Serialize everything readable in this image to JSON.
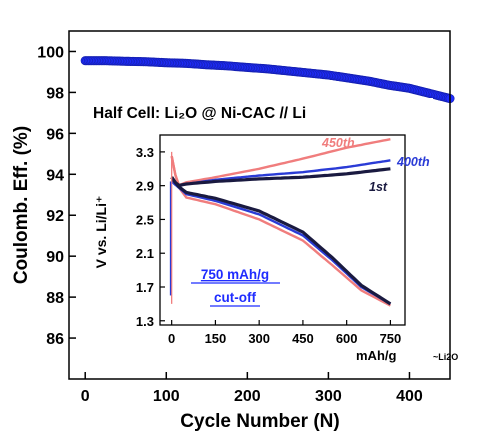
{
  "chart_data": [
    {
      "type": "scatter",
      "xlabel": "Cycle Number (N)",
      "ylabel": "Coulomb. Eff. (%)",
      "xlim": [
        -20,
        450
      ],
      "ylim": [
        84,
        101
      ],
      "x_ticks": [
        0,
        100,
        200,
        300,
        400
      ],
      "y_ticks": [
        86,
        88,
        90,
        92,
        94,
        96,
        98,
        100
      ],
      "grid": false,
      "series": [
        {
          "color": "#1f2cff",
          "x": [
            0,
            25,
            50,
            75,
            100,
            125,
            150,
            175,
            200,
            225,
            250,
            275,
            300,
            325,
            350,
            375,
            400,
            425,
            450
          ],
          "y": [
            99.55,
            99.55,
            99.52,
            99.5,
            99.45,
            99.42,
            99.35,
            99.3,
            99.22,
            99.15,
            99.05,
            98.95,
            98.85,
            98.7,
            98.55,
            98.35,
            98.2,
            97.95,
            97.7
          ]
        }
      ],
      "annotations": [
        "Half Cell: Li₂O @ Ni-CAC // Li"
      ]
    },
    {
      "type": "line",
      "xlabel": "mAh/g",
      "xlabel_suffix": "~Li2O",
      "ylabel": "V vs. Li/Li⁺",
      "xlim": [
        -40,
        800
      ],
      "ylim": [
        1.25,
        3.5
      ],
      "x_ticks": [
        0,
        150,
        300,
        450,
        600,
        750
      ],
      "y_ticks": [
        1.3,
        1.7,
        2.1,
        2.5,
        2.9,
        3.3
      ],
      "grid": false,
      "series": [
        {
          "name": "1st",
          "color": "#1a1a40",
          "charge": {
            "x": [
              0,
              20,
              50,
              150,
              300,
              450,
              600,
              750
            ],
            "y": [
              3.0,
              2.9,
              2.92,
              2.95,
              2.98,
              3.0,
              3.04,
              3.1
            ]
          },
          "discharge": {
            "x": [
              0,
              20,
              50,
              150,
              300,
              450,
              550,
              650,
              750
            ],
            "y": [
              3.0,
              2.9,
              2.82,
              2.75,
              2.6,
              2.35,
              2.05,
              1.72,
              1.5
            ]
          }
        },
        {
          "name": "400th",
          "color": "#2a3bd6",
          "charge": {
            "x": [
              0,
              20,
              50,
              150,
              300,
              450,
              600,
              750
            ],
            "y": [
              2.95,
              2.89,
              2.92,
              2.97,
              3.02,
              3.06,
              3.12,
              3.2
            ]
          },
          "discharge": {
            "x": [
              0,
              20,
              50,
              150,
              300,
              450,
              550,
              650,
              750
            ],
            "y": [
              2.95,
              2.89,
              2.8,
              2.72,
              2.56,
              2.31,
              2.02,
              1.7,
              1.5
            ]
          }
        },
        {
          "name": "450th",
          "color": "#f07d7d",
          "charge": {
            "x": [
              0,
              20,
              50,
              150,
              300,
              450,
              600,
              750
            ],
            "y": [
              3.25,
              2.9,
              2.94,
              3.0,
              3.1,
              3.22,
              3.35,
              3.45
            ]
          },
          "discharge": {
            "x": [
              0,
              20,
              50,
              150,
              300,
              450,
              550,
              650,
              750
            ],
            "y": [
              3.25,
              2.9,
              2.76,
              2.68,
              2.5,
              2.25,
              1.96,
              1.66,
              1.48
            ]
          }
        }
      ],
      "annotations": [
        "750 mAh/g",
        "cut-off"
      ]
    }
  ],
  "colors": {
    "main_series": "#1f2cff",
    "first_cycle": "#1a1a40",
    "cycle_400": "#2a3bd6",
    "cycle_450": "#f07d7d",
    "cutoff_text": "#1f2cff"
  }
}
